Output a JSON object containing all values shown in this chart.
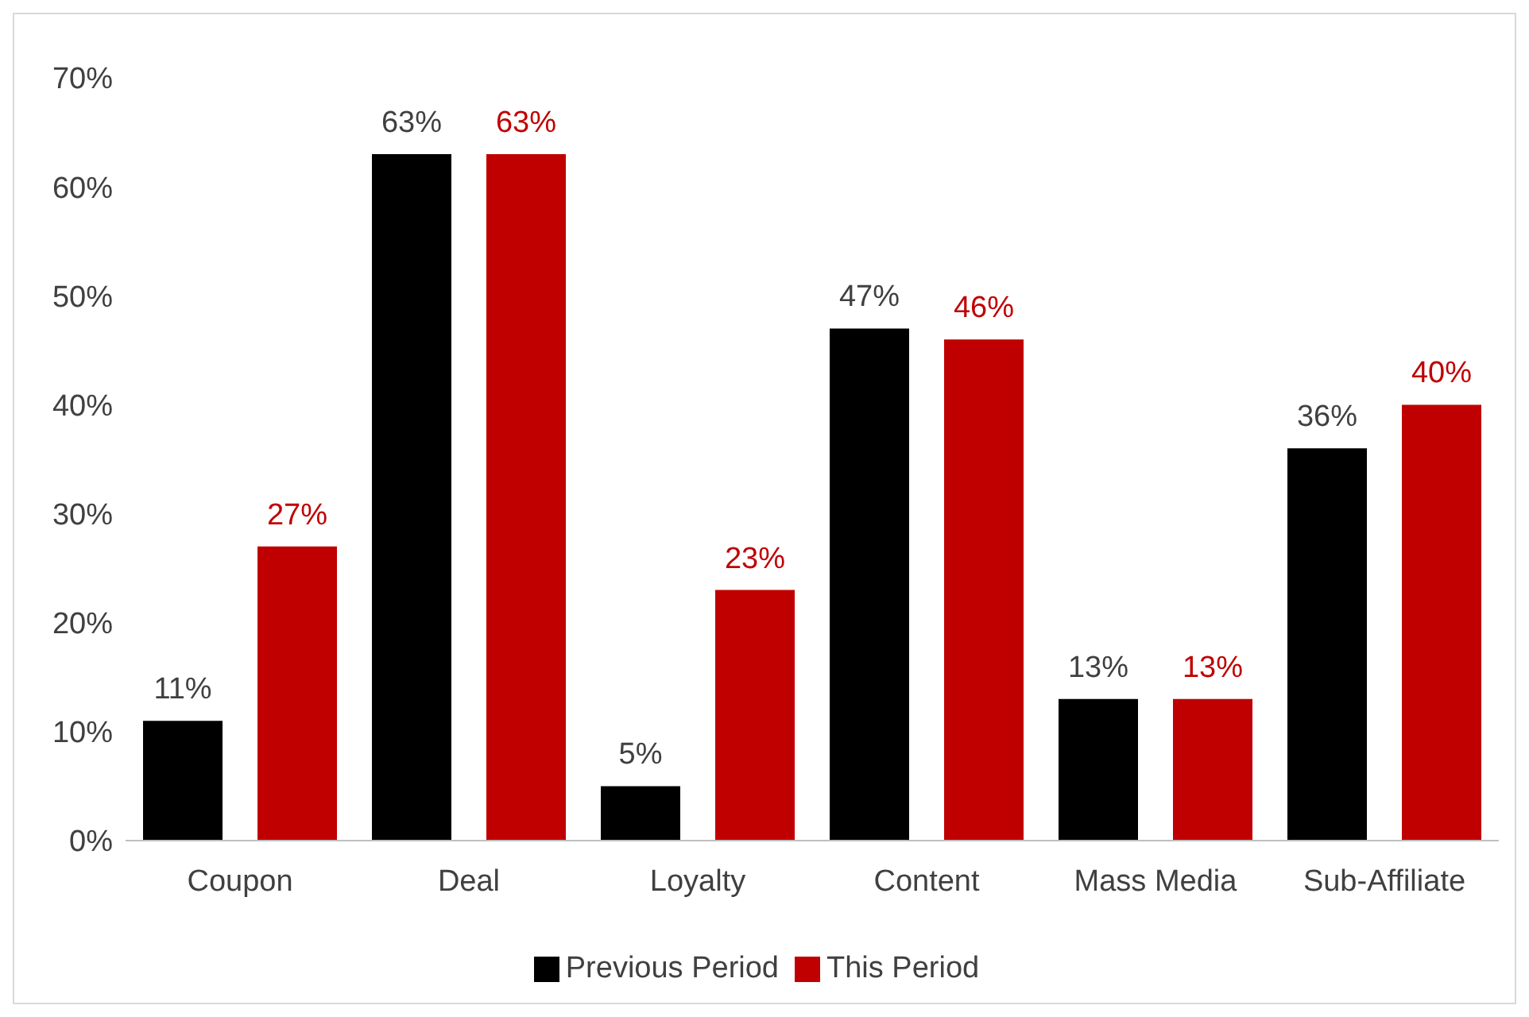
{
  "chart_data": {
    "type": "bar",
    "categories": [
      "Coupon",
      "Deal",
      "Loyalty",
      "Content",
      "Mass Media",
      "Sub-Affiliate"
    ],
    "series": [
      {
        "name": "Previous Period",
        "color": "#000000",
        "values": [
          11,
          63,
          5,
          47,
          13,
          36
        ],
        "value_labels": [
          "11%",
          "63%",
          "5%",
          "47%",
          "13%",
          "36%"
        ]
      },
      {
        "name": "This Period",
        "color": "#c00000",
        "values": [
          27,
          63,
          23,
          46,
          13,
          40
        ],
        "value_labels": [
          "27%",
          "63%",
          "23%",
          "46%",
          "13%",
          "40%"
        ]
      }
    ],
    "ylim": [
      0,
      70
    ],
    "yticks": [
      {
        "value": 0,
        "label": "0%"
      },
      {
        "value": 10,
        "label": "10%"
      },
      {
        "value": 20,
        "label": "20%"
      },
      {
        "value": 30,
        "label": "30%"
      },
      {
        "value": 40,
        "label": "40%"
      },
      {
        "value": 50,
        "label": "50%"
      },
      {
        "value": 60,
        "label": "60%"
      },
      {
        "value": 70,
        "label": "70%"
      }
    ],
    "grid": false,
    "legend": "bottom"
  }
}
